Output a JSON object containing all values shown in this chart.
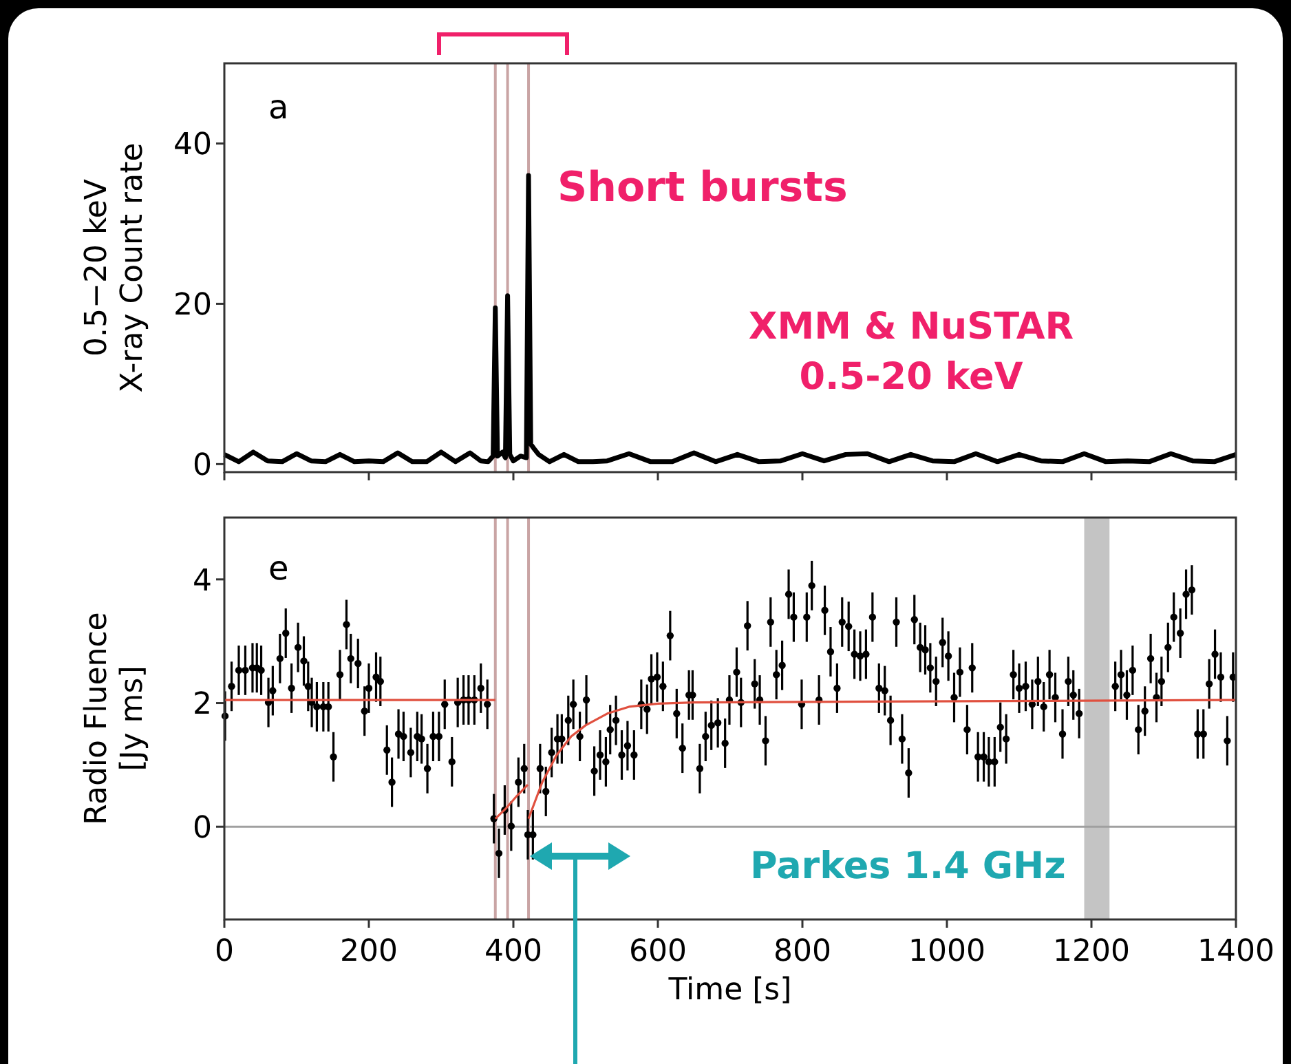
{
  "chart_data": [
    {
      "type": "line",
      "ylabel": "0.5−20 keV\nX-ray Count rate",
      "xlim": [
        0,
        1400
      ],
      "xticks": [
        0,
        200,
        400,
        600,
        800,
        1000,
        1200,
        1400
      ],
      "ylim": [
        -1,
        50
      ],
      "yticks": [
        0,
        20,
        40
      ],
      "tick_labels": "y",
      "x": [
        0,
        20,
        40,
        60,
        80,
        100,
        120,
        140,
        160,
        180,
        200,
        220,
        240,
        260,
        280,
        300,
        320,
        340,
        355,
        365,
        372,
        375,
        378,
        385,
        389,
        392,
        395,
        400,
        410,
        418,
        421,
        424,
        428,
        435,
        450,
        470,
        490,
        510,
        530,
        560,
        590,
        620,
        650,
        680,
        710,
        740,
        770,
        800,
        830,
        860,
        890,
        920,
        950,
        980,
        1010,
        1040,
        1070,
        1100,
        1130,
        1160,
        1190,
        1220,
        1250,
        1280,
        1310,
        1340,
        1370,
        1400
      ],
      "series": [
        {
          "color": "#000000",
          "values": [
            1.2,
            0.3,
            1.5,
            0.4,
            0.3,
            1.3,
            0.4,
            0.3,
            1.2,
            0.3,
            0.4,
            0.3,
            1.4,
            0.3,
            0.3,
            1.5,
            0.3,
            1.4,
            0.4,
            0.3,
            1.0,
            19.5,
            1.0,
            1.5,
            0.8,
            21,
            1.2,
            0.4,
            1.0,
            0.8,
            36,
            2.5,
            2.0,
            1.2,
            0.3,
            1.2,
            0.3,
            0.3,
            0.4,
            1.3,
            0.3,
            0.3,
            1.4,
            0.3,
            1.2,
            0.3,
            0.4,
            1.3,
            0.4,
            1.2,
            1.3,
            0.3,
            1.2,
            0.4,
            0.3,
            1.3,
            0.3,
            1.2,
            0.4,
            0.3,
            1.3,
            0.3,
            0.4,
            0.3,
            1.3,
            0.4,
            0.3,
            1.2
          ]
        }
      ],
      "ref_lines": [
        {
          "axis": "x",
          "value": 375,
          "color": "#c9a4a4"
        },
        {
          "axis": "x",
          "value": 392,
          "color": "#c9a4a4"
        },
        {
          "axis": "x",
          "value": 421,
          "color": "#c9a4a4"
        }
      ],
      "annotations": [
        "a",
        "Short bursts",
        "XMM & NuSTAR\n0.5-20 keV"
      ]
    },
    {
      "type": "scatter",
      "xlabel": "Time [s]",
      "ylabel": "Radio Fluence\n[Jy ms]",
      "xlim": [
        0,
        1400
      ],
      "xticks": [
        0,
        200,
        400,
        600,
        800,
        1000,
        1200,
        1400
      ],
      "ylim": [
        -1.5,
        5
      ],
      "yticks": [
        0,
        2,
        4
      ],
      "series": [
        {
          "color": "#000000",
          "marker": "circle",
          "x": [
            1,
            10,
            20,
            29,
            39,
            45,
            51,
            61,
            67,
            77,
            85,
            93,
            102,
            110,
            116,
            121,
            128,
            137,
            144,
            151,
            160,
            169,
            175,
            185,
            194,
            200,
            210,
            216,
            225,
            232,
            241,
            248,
            258,
            267,
            273,
            281,
            289,
            297,
            305,
            315,
            323,
            331,
            338,
            346,
            355,
            364,
            373,
            380,
            388,
            397,
            407,
            415,
            420,
            427,
            437,
            445,
            453,
            461,
            467,
            476,
            483,
            492,
            501,
            512,
            520,
            528,
            534,
            542,
            550,
            558,
            567,
            577,
            585,
            591,
            599,
            607,
            617,
            626,
            634,
            643,
            648,
            658,
            666,
            674,
            683,
            693,
            699,
            709,
            715,
            724,
            734,
            741,
            749,
            756,
            764,
            772,
            781,
            788,
            799,
            806,
            813,
            823,
            831,
            839,
            848,
            855,
            864,
            872,
            880,
            888,
            897,
            906,
            914,
            922,
            930,
            938,
            947,
            955,
            963,
            970,
            977,
            985,
            994,
            1002,
            1010,
            1018,
            1028,
            1035,
            1043,
            1051,
            1058,
            1066,
            1074,
            1082,
            1092,
            1100,
            1109,
            1118,
            1126,
            1134,
            1142,
            1150,
            1160,
            1168,
            1175,
            1183,
            1233,
            1241,
            1249,
            1257,
            1265,
            1274,
            1282,
            1290,
            1297,
            1306,
            1314,
            1323,
            1331,
            1339,
            1347,
            1355,
            1363,
            1371,
            1379,
            1388,
            1396
          ],
          "values": [
            1.79,
            2.27,
            2.53,
            2.53,
            2.57,
            2.57,
            2.53,
            2.01,
            2.2,
            2.72,
            3.13,
            2.24,
            2.9,
            2.68,
            2.27,
            2.01,
            1.94,
            1.94,
            1.94,
            1.13,
            2.46,
            3.27,
            2.72,
            2.64,
            1.87,
            2.24,
            2.42,
            2.35,
            1.24,
            0.72,
            1.5,
            1.46,
            1.2,
            1.46,
            1.42,
            0.94,
            1.46,
            1.46,
            1.98,
            1.05,
            2.01,
            2.05,
            2.05,
            2.05,
            2.24,
            1.98,
            0.13,
            -0.43,
            0.27,
            0.01,
            0.72,
            0.94,
            -0.13,
            -0.13,
            0.94,
            0.57,
            1.2,
            1.42,
            1.42,
            1.72,
            1.98,
            1.46,
            2.05,
            0.9,
            1.16,
            1.05,
            1.57,
            1.72,
            1.16,
            1.31,
            1.16,
            1.98,
            1.9,
            2.39,
            2.42,
            2.27,
            3.09,
            1.83,
            1.27,
            2.13,
            2.13,
            0.94,
            1.46,
            1.64,
            1.68,
            1.35,
            2.05,
            2.5,
            2.01,
            3.25,
            2.31,
            2.05,
            1.39,
            3.31,
            2.46,
            2.61,
            3.76,
            3.39,
            1.98,
            3.39,
            3.9,
            2.05,
            3.5,
            2.83,
            2.24,
            3.31,
            3.24,
            2.79,
            2.76,
            2.79,
            3.39,
            2.24,
            2.2,
            1.72,
            3.31,
            1.42,
            0.87,
            3.35,
            2.9,
            2.86,
            2.57,
            2.35,
            2.98,
            2.76,
            2.09,
            2.5,
            1.57,
            2.57,
            1.13,
            1.13,
            1.05,
            1.05,
            1.61,
            1.42,
            2.46,
            2.24,
            2.27,
            1.98,
            2.35,
            1.94,
            2.46,
            2.09,
            1.5,
            2.35,
            2.13,
            1.83,
            2.27,
            2.46,
            2.13,
            2.53,
            1.57,
            1.87,
            2.72,
            2.09,
            2.35,
            2.9,
            3.39,
            3.13,
            3.76,
            3.83,
            1.5,
            1.5,
            2.31,
            2.79,
            2.42,
            1.39,
            2.42
          ],
          "errors": [
            0.4,
            0.4,
            0.4,
            0.4,
            0.4,
            0.4,
            0.4,
            0.4,
            0.4,
            0.4,
            0.4,
            0.4,
            0.4,
            0.4,
            0.4,
            0.4,
            0.4,
            0.4,
            0.4,
            0.4,
            0.4,
            0.4,
            0.4,
            0.4,
            0.4,
            0.4,
            0.4,
            0.4,
            0.4,
            0.4,
            0.4,
            0.4,
            0.4,
            0.4,
            0.4,
            0.4,
            0.4,
            0.4,
            0.4,
            0.4,
            0.4,
            0.4,
            0.4,
            0.4,
            0.4,
            0.4,
            0.4,
            0.4,
            0.4,
            0.4,
            0.4,
            0.4,
            0.4,
            0.4,
            0.4,
            0.4,
            0.4,
            0.4,
            0.4,
            0.4,
            0.4,
            0.4,
            0.4,
            0.4,
            0.4,
            0.4,
            0.4,
            0.4,
            0.4,
            0.4,
            0.4,
            0.4,
            0.4,
            0.4,
            0.4,
            0.4,
            0.4,
            0.4,
            0.4,
            0.4,
            0.4,
            0.4,
            0.4,
            0.4,
            0.4,
            0.4,
            0.4,
            0.4,
            0.4,
            0.4,
            0.4,
            0.4,
            0.4,
            0.4,
            0.4,
            0.4,
            0.4,
            0.4,
            0.4,
            0.4,
            0.4,
            0.4,
            0.4,
            0.4,
            0.4,
            0.4,
            0.4,
            0.4,
            0.4,
            0.4,
            0.4,
            0.4,
            0.4,
            0.4,
            0.4,
            0.4,
            0.4,
            0.4,
            0.4,
            0.4,
            0.4,
            0.4,
            0.4,
            0.4,
            0.4,
            0.4,
            0.4,
            0.4,
            0.4,
            0.4,
            0.4,
            0.4,
            0.4,
            0.4,
            0.4,
            0.4,
            0.4,
            0.4,
            0.4,
            0.4,
            0.4,
            0.4,
            0.4,
            0.4,
            0.4,
            0.4,
            0.4,
            0.4,
            0.4,
            0.4,
            0.4,
            0.4,
            0.4,
            0.4,
            0.4,
            0.4,
            0.4,
            0.4,
            0.4,
            0.4,
            0.4,
            0.4,
            0.4,
            0.4,
            0.4,
            0.4,
            0.4
          ]
        },
        {
          "type": "line",
          "color": "#e0503f",
          "x": [
            0,
            375
          ],
          "values": [
            2.05,
            2.05
          ]
        },
        {
          "type": "line",
          "color": "#e0503f",
          "x": [
            375,
            390,
            405,
            420
          ],
          "values": [
            0.13,
            0.3,
            0.5,
            0.68
          ]
        },
        {
          "type": "line",
          "color": "#e0503f",
          "x": [
            421,
            440,
            460,
            480,
            500,
            530,
            560,
            600,
            650,
            1400
          ],
          "values": [
            0.13,
            0.72,
            1.16,
            1.46,
            1.64,
            1.83,
            1.94,
            1.99,
            2.01,
            2.05
          ]
        }
      ],
      "ref_lines": [
        {
          "axis": "y",
          "value": 0,
          "color": "#a0a0a0"
        },
        {
          "axis": "x",
          "value": 375,
          "color": "#c9a4a4"
        },
        {
          "axis": "x",
          "value": 392,
          "color": "#c9a4a4"
        },
        {
          "axis": "x",
          "value": 421,
          "color": "#c9a4a4"
        }
      ],
      "bands": [
        {
          "axis": "x",
          "from": 1190,
          "to": 1225,
          "color": "#c4c4c4"
        }
      ],
      "annotations": [
        "e",
        "Parkes 1.4 GHz"
      ]
    }
  ]
}
